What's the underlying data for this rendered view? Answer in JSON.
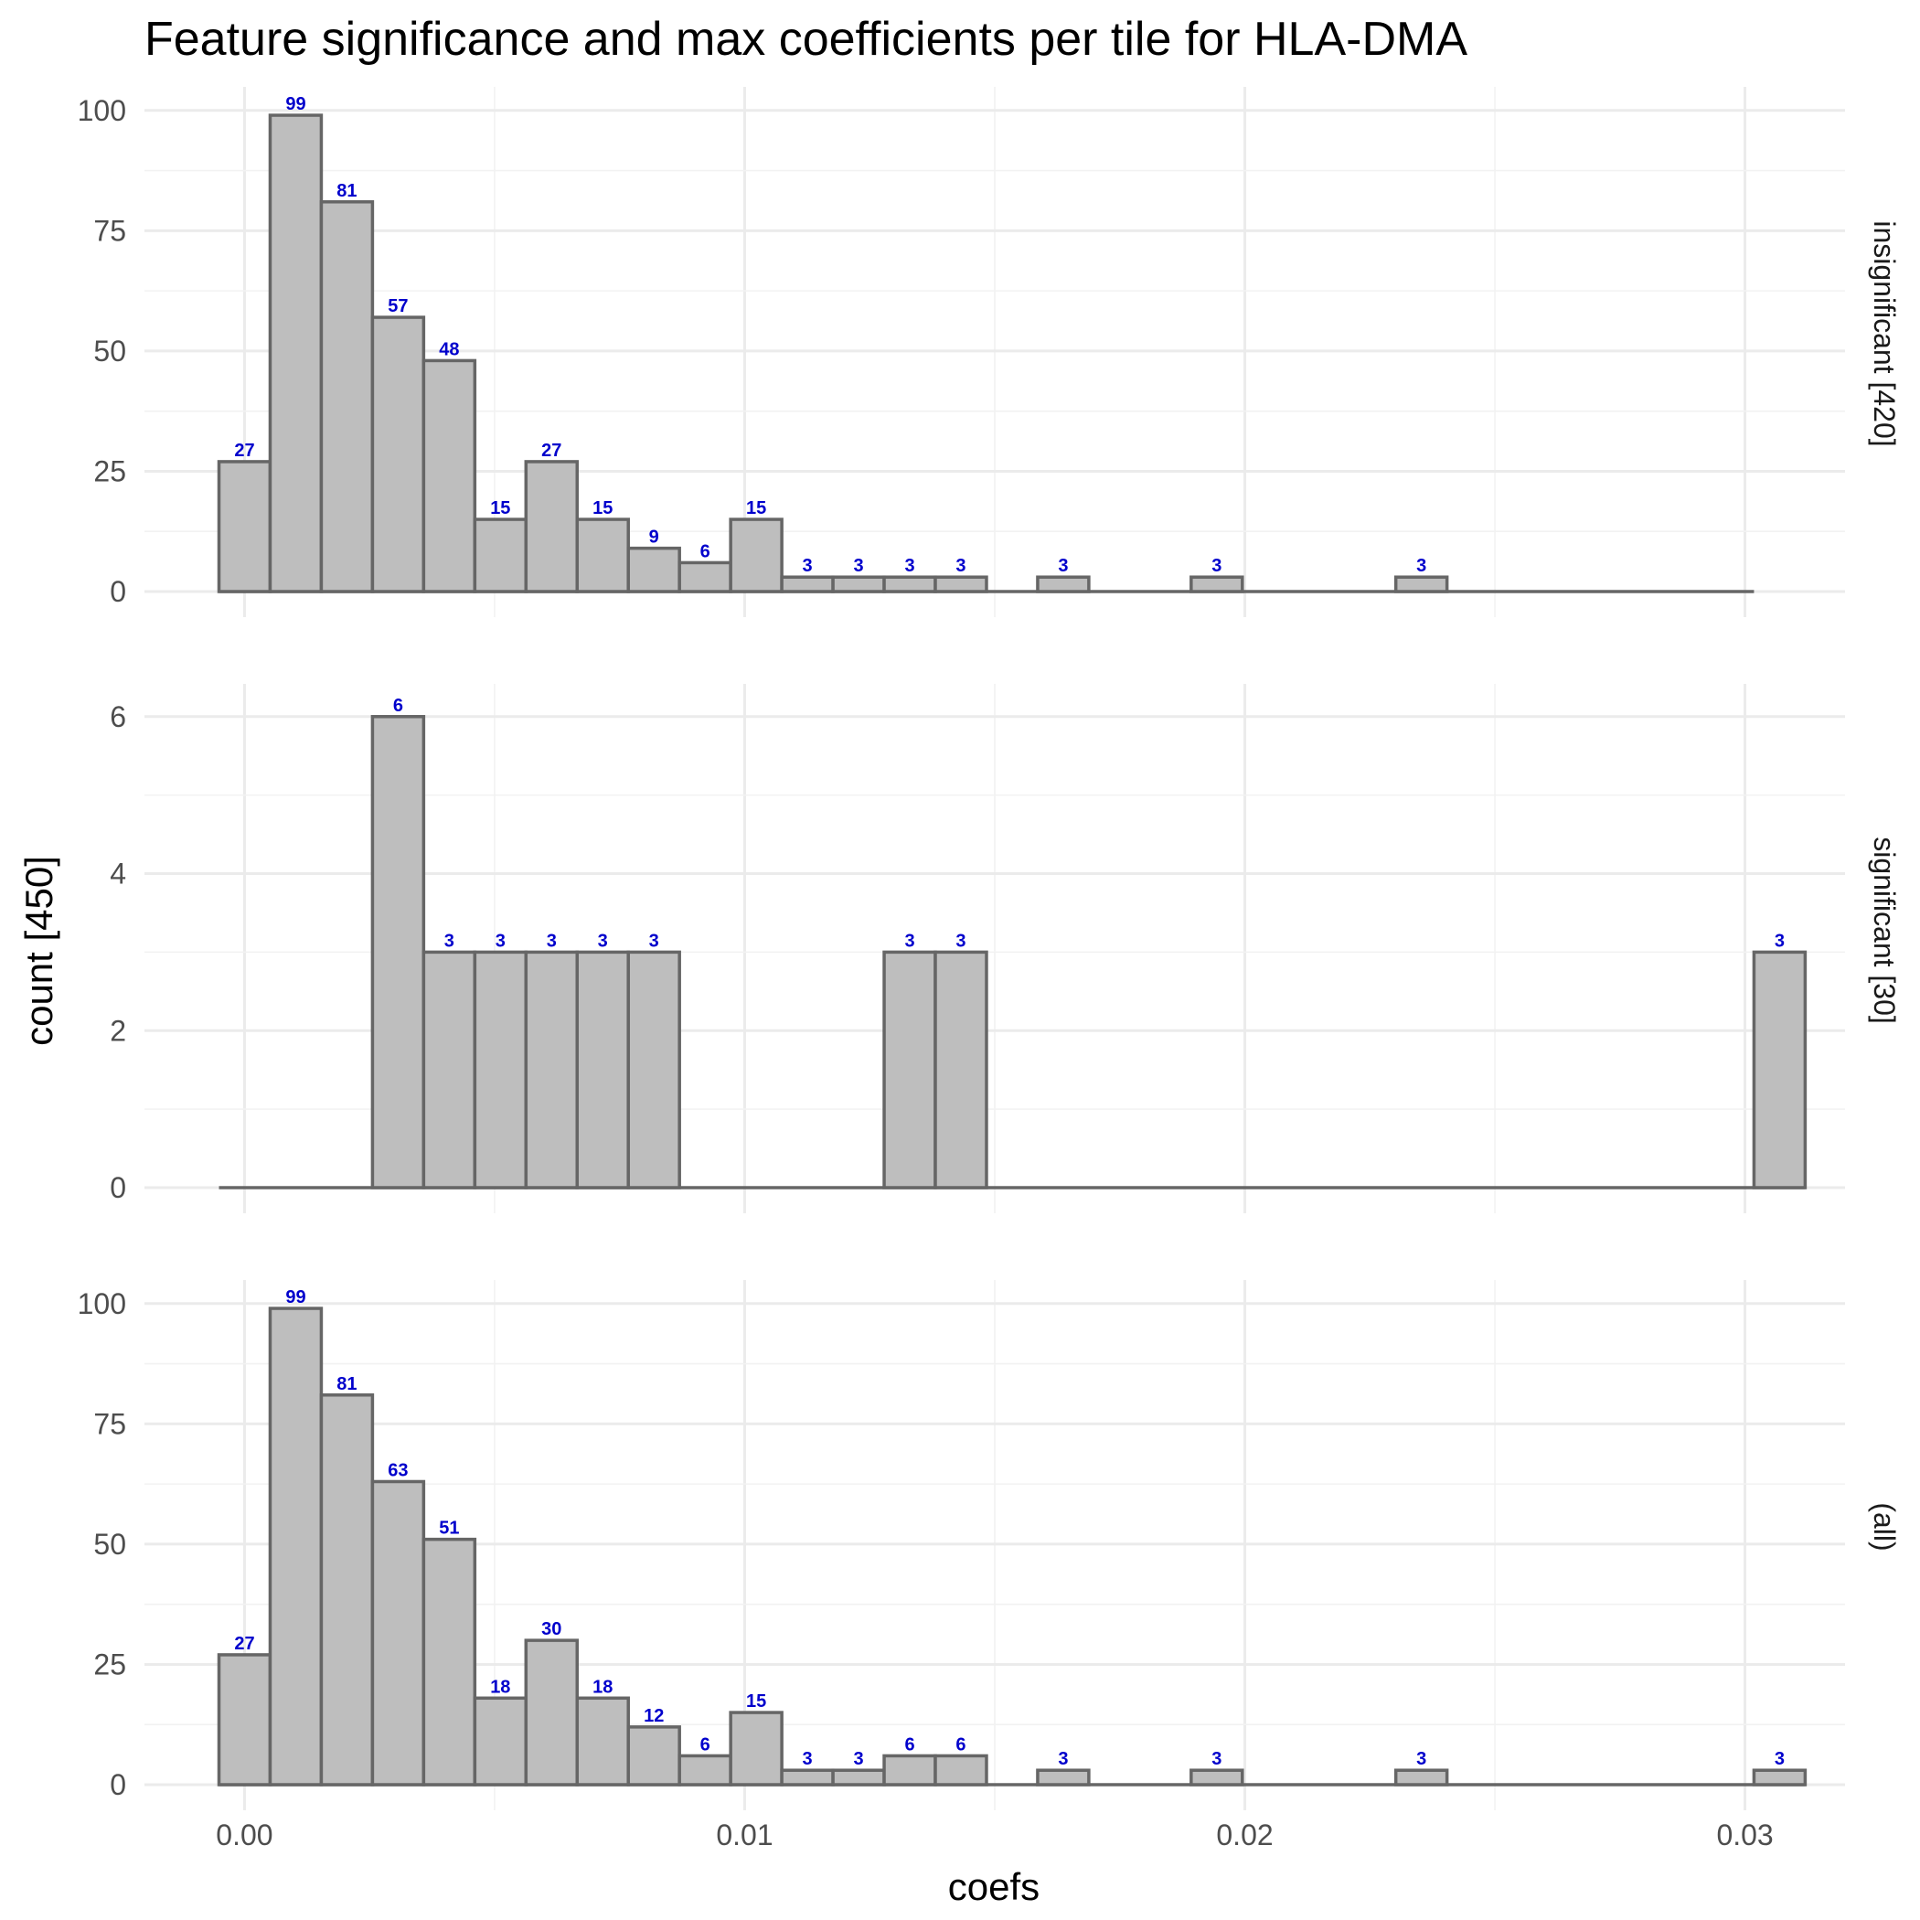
{
  "chart_data": {
    "type": "bar",
    "title": "Feature significance and max coefficients per tile for HLA-DMA",
    "xlabel": "coefs",
    "ylabel": "count [450]",
    "xlim": [
      -0.002,
      0.032
    ],
    "x_ticks": [
      0.0,
      0.01,
      0.02,
      0.03
    ],
    "x_tick_labels": [
      "0.00",
      "0.01",
      "0.02",
      "0.03"
    ],
    "bin_start": -0.00051,
    "bin_width": 0.001023,
    "grid": true,
    "panels": [
      {
        "strip_label": "insignificant [420]",
        "ylim": [
          0,
          103
        ],
        "y_ticks": [
          0,
          25,
          50,
          75,
          100
        ],
        "y_tick_labels": [
          "0",
          "25",
          "50",
          "75",
          "100"
        ],
        "counts": [
          27,
          99,
          81,
          57,
          48,
          15,
          27,
          15,
          9,
          6,
          15,
          3,
          3,
          3,
          3,
          0,
          3,
          0,
          0,
          3,
          0,
          0,
          0,
          3,
          0,
          0,
          0,
          0,
          0,
          0
        ],
        "labels": [
          "27",
          "99",
          "81",
          "57",
          "48",
          "15",
          "27",
          "15",
          "9",
          "6",
          "15",
          "3",
          "3",
          "3",
          "3",
          "",
          "3",
          "",
          "",
          "3",
          "",
          "",
          "",
          "3",
          "",
          "",
          "",
          "",
          "",
          ""
        ]
      },
      {
        "strip_label": "significant [30]",
        "ylim": [
          0,
          6.3
        ],
        "y_ticks": [
          0,
          2,
          4,
          6
        ],
        "y_tick_labels": [
          "0",
          "2",
          "4",
          "6"
        ],
        "counts": [
          0,
          0,
          0,
          6,
          3,
          3,
          3,
          3,
          3,
          0,
          0,
          0,
          0,
          3,
          3,
          0,
          0,
          0,
          0,
          0,
          0,
          0,
          0,
          0,
          0,
          0,
          0,
          0,
          0,
          0,
          3
        ],
        "labels": [
          "",
          "",
          "",
          "6",
          "3",
          "3",
          "3",
          "3",
          "3",
          "",
          "",
          "",
          "",
          "3",
          "3",
          "",
          "",
          "",
          "",
          "",
          "",
          "",
          "",
          "",
          "",
          "",
          "",
          "",
          "",
          "",
          "3"
        ]
      },
      {
        "strip_label": "(all)",
        "ylim": [
          0,
          103
        ],
        "y_ticks": [
          0,
          25,
          50,
          75,
          100
        ],
        "y_tick_labels": [
          "0",
          "25",
          "50",
          "75",
          "100"
        ],
        "counts": [
          27,
          99,
          81,
          63,
          51,
          18,
          30,
          18,
          12,
          6,
          15,
          3,
          3,
          6,
          6,
          0,
          3,
          0,
          0,
          3,
          0,
          0,
          0,
          3,
          0,
          0,
          0,
          0,
          0,
          0,
          3
        ],
        "labels": [
          "27",
          "99",
          "81",
          "63",
          "51",
          "18",
          "30",
          "18",
          "12",
          "6",
          "15",
          "3",
          "3",
          "6",
          "6",
          "",
          "3",
          "",
          "",
          "3",
          "",
          "",
          "",
          "3",
          "",
          "",
          "",
          "",
          "",
          "",
          "3"
        ]
      }
    ]
  }
}
